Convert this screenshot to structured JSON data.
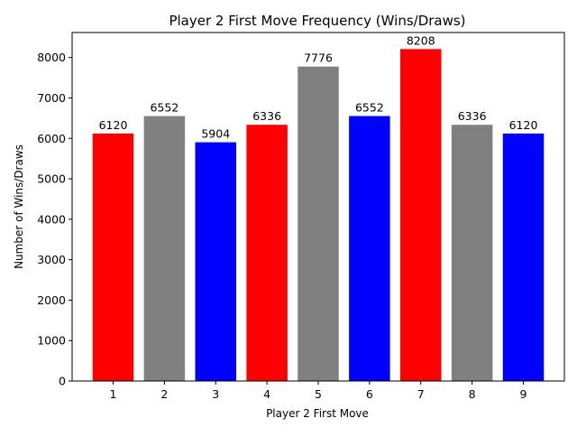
{
  "chart_data": {
    "type": "bar",
    "title": "Player 2 First Move Frequency (Wins/Draws)",
    "xlabel": "Player 2 First Move",
    "ylabel": "Number of Wins/Draws",
    "categories": [
      "1",
      "2",
      "3",
      "4",
      "5",
      "6",
      "7",
      "8",
      "9"
    ],
    "values": [
      6120,
      6552,
      5904,
      6336,
      7776,
      6552,
      8208,
      6336,
      6120
    ],
    "bar_colors": [
      "#ff0000",
      "#808080",
      "#0000ff",
      "#ff0000",
      "#808080",
      "#0000ff",
      "#ff0000",
      "#808080",
      "#0000ff"
    ],
    "data_labels": [
      "6120",
      "6552",
      "5904",
      "6336",
      "7776",
      "6552",
      "8208",
      "6336",
      "6120"
    ],
    "ylim": [
      0,
      8618
    ],
    "yticks": [
      0,
      1000,
      2000,
      3000,
      4000,
      5000,
      6000,
      7000,
      8000
    ],
    "ytick_labels": [
      "0",
      "1000",
      "2000",
      "3000",
      "4000",
      "5000",
      "6000",
      "7000",
      "8000"
    ],
    "grid": false,
    "legend": "none"
  }
}
